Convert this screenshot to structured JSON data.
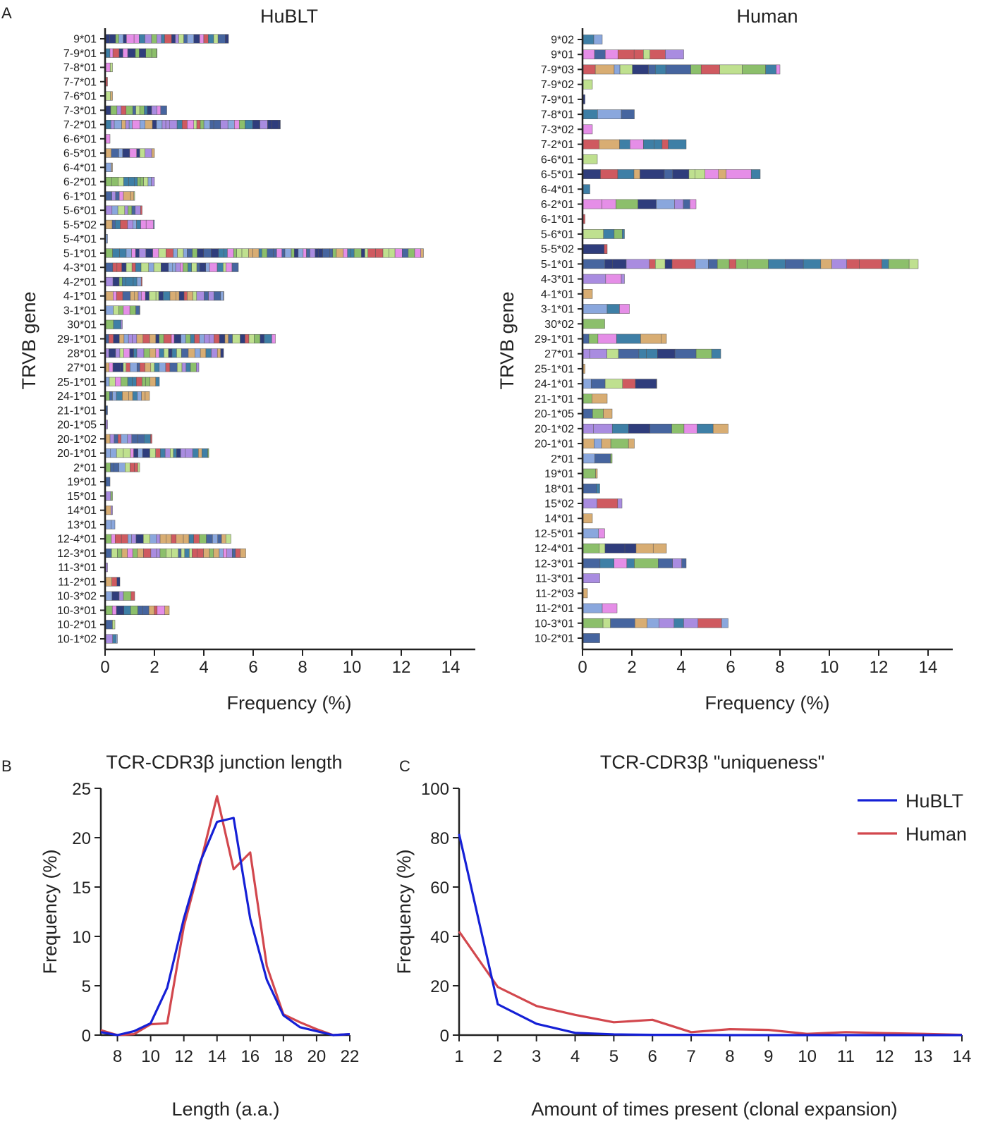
{
  "figure": {
    "panel_letters": [
      "A",
      "B",
      "C"
    ]
  },
  "colors": {
    "hublt": "#1520d6",
    "human": "#d2474d",
    "axis": "#222222",
    "segment_palette": [
      "#8aa7dd",
      "#bfe08f",
      "#d8ad73",
      "#cf5a60",
      "#a98ce0",
      "#e58ee7",
      "#46659f",
      "#3e7fa6",
      "#8cbf6b",
      "#2f3d7c"
    ]
  },
  "chart_data": [
    {
      "id": "A-left",
      "type": "bar",
      "orientation": "horizontal",
      "title": "HuBLT",
      "xlabel": "Frequency (%)",
      "ylabel": "TRVB gene",
      "xlim": [
        0,
        15
      ],
      "xticks": [
        0,
        2,
        4,
        6,
        8,
        10,
        12,
        14
      ],
      "categories": [
        "9*01",
        "7-9*01",
        "7-8*01",
        "7-7*01",
        "7-6*01",
        "7-3*01",
        "7-2*01",
        "6-6*01",
        "6-5*01",
        "6-4*01",
        "6-2*01",
        "6-1*01",
        "5-6*01",
        "5-5*02",
        "5-4*01",
        "5-1*01",
        "4-3*01",
        "4-2*01",
        "4-1*01",
        "3-1*01",
        "30*01",
        "29-1*01",
        "28*01",
        "27*01",
        "25-1*01",
        "24-1*01",
        "21-1*01",
        "20-1*05",
        "20-1*02",
        "20-1*01",
        "2*01",
        "19*01",
        "15*01",
        "14*01",
        "13*01",
        "12-4*01",
        "12-3*01",
        "11-3*01",
        "11-2*01",
        "10-3*02",
        "10-3*01",
        "10-2*01",
        "10-1*02"
      ],
      "values": [
        5.0,
        2.1,
        0.3,
        0.1,
        0.3,
        2.5,
        7.1,
        0.2,
        2.0,
        0.3,
        2.0,
        1.2,
        1.5,
        2.0,
        0.1,
        12.9,
        5.4,
        1.5,
        4.8,
        1.4,
        0.7,
        6.9,
        4.8,
        3.8,
        2.2,
        1.8,
        0.1,
        0.1,
        1.9,
        4.2,
        1.4,
        0.2,
        0.3,
        0.3,
        0.4,
        5.1,
        5.7,
        0.1,
        0.6,
        1.2,
        2.6,
        0.4,
        0.5
      ]
    },
    {
      "id": "A-right",
      "type": "bar",
      "orientation": "horizontal",
      "title": "Human",
      "xlabel": "Frequency (%)",
      "ylabel": "TRVB gene",
      "xlim": [
        0,
        15
      ],
      "xticks": [
        0,
        2,
        4,
        6,
        8,
        10,
        12,
        14
      ],
      "categories": [
        "9*02",
        "9*01",
        "7-9*03",
        "7-9*02",
        "7-9*01",
        "7-8*01",
        "7-3*02",
        "7-2*01",
        "6-6*01",
        "6-5*01",
        "6-4*01",
        "6-2*01",
        "6-1*01",
        "5-6*01",
        "5-5*02",
        "5-1*01",
        "4-3*01",
        "4-1*01",
        "3-1*01",
        "30*02",
        "29-1*01",
        "27*01",
        "25-1*01",
        "24-1*01",
        "21-1*01",
        "20-1*05",
        "20-1*02",
        "20-1*01",
        "2*01",
        "19*01",
        "18*01",
        "15*02",
        "14*01",
        "12-5*01",
        "12-4*01",
        "12-3*01",
        "11-3*01",
        "11-2*03",
        "11-2*01",
        "10-3*01",
        "10-2*01"
      ],
      "values": [
        0.8,
        4.1,
        8.0,
        0.4,
        0.1,
        2.1,
        0.4,
        4.2,
        0.6,
        7.2,
        0.3,
        4.6,
        0.1,
        1.7,
        1.0,
        13.6,
        1.7,
        0.4,
        1.9,
        0.9,
        3.4,
        5.6,
        0.1,
        3.0,
        1.0,
        1.2,
        5.9,
        2.1,
        1.2,
        0.6,
        0.7,
        1.6,
        0.4,
        0.9,
        3.4,
        4.2,
        0.7,
        0.2,
        1.4,
        5.9,
        0.7
      ]
    },
    {
      "id": "B",
      "type": "line",
      "title": "TCR-CDR3β junction length",
      "xlabel": "Length (a.a.)",
      "ylabel": "Frequency (%)",
      "xlim": [
        7,
        22
      ],
      "ylim": [
        0,
        25
      ],
      "xticks": [
        8,
        10,
        12,
        14,
        16,
        18,
        20,
        22
      ],
      "yticks": [
        0,
        5,
        10,
        15,
        20,
        25
      ],
      "series": [
        {
          "name": "HuBLT",
          "color": "#1520d6",
          "x": [
            7,
            8,
            9,
            10,
            11,
            12,
            13,
            14,
            15,
            16,
            17,
            18,
            19,
            20,
            21,
            22
          ],
          "y": [
            0.3,
            0.0,
            0.4,
            1.2,
            4.8,
            11.8,
            17.6,
            21.6,
            22.0,
            11.8,
            5.6,
            2.0,
            0.8,
            0.4,
            0.0,
            0.1
          ]
        },
        {
          "name": "Human",
          "color": "#d2474d",
          "x": [
            7,
            8,
            9,
            10,
            11,
            12,
            13,
            14,
            15,
            16,
            17,
            18,
            19,
            20,
            21,
            22
          ],
          "y": [
            0.5,
            0.0,
            0.1,
            1.1,
            1.2,
            11.0,
            17.4,
            24.2,
            16.8,
            18.5,
            7.0,
            2.1,
            1.3,
            0.6,
            0.0,
            0.1
          ]
        }
      ]
    },
    {
      "id": "C",
      "type": "line",
      "title": "TCR-CDR3β \"uniqueness\"",
      "xlabel": "Amount of times present (clonal expansion)",
      "ylabel": "Frequency (%)",
      "xlim": [
        1,
        14
      ],
      "ylim": [
        0,
        100
      ],
      "xticks": [
        1,
        2,
        3,
        4,
        5,
        6,
        7,
        8,
        9,
        10,
        11,
        12,
        13,
        14
      ],
      "yticks": [
        0,
        20,
        40,
        60,
        80,
        100
      ],
      "legend": {
        "placement": "top-right",
        "entries": [
          "HuBLT",
          "Human"
        ]
      },
      "series": [
        {
          "name": "HuBLT",
          "color": "#1520d6",
          "x": [
            1,
            2,
            3,
            4,
            5,
            6,
            7,
            8,
            9,
            10,
            11,
            12,
            13,
            14
          ],
          "y": [
            81.5,
            12.5,
            4.6,
            0.9,
            0.3,
            0.1,
            0.1,
            0.0,
            0.0,
            0.0,
            0.0,
            0.0,
            0.0,
            0.0
          ]
        },
        {
          "name": "Human",
          "color": "#d2474d",
          "x": [
            1,
            2,
            3,
            4,
            5,
            6,
            7,
            8,
            9,
            10,
            11,
            12,
            13,
            14
          ],
          "y": [
            42.0,
            19.5,
            11.8,
            8.2,
            5.2,
            6.2,
            1.2,
            2.4,
            2.1,
            0.5,
            1.2,
            0.8,
            0.5,
            0.1
          ]
        }
      ]
    }
  ]
}
